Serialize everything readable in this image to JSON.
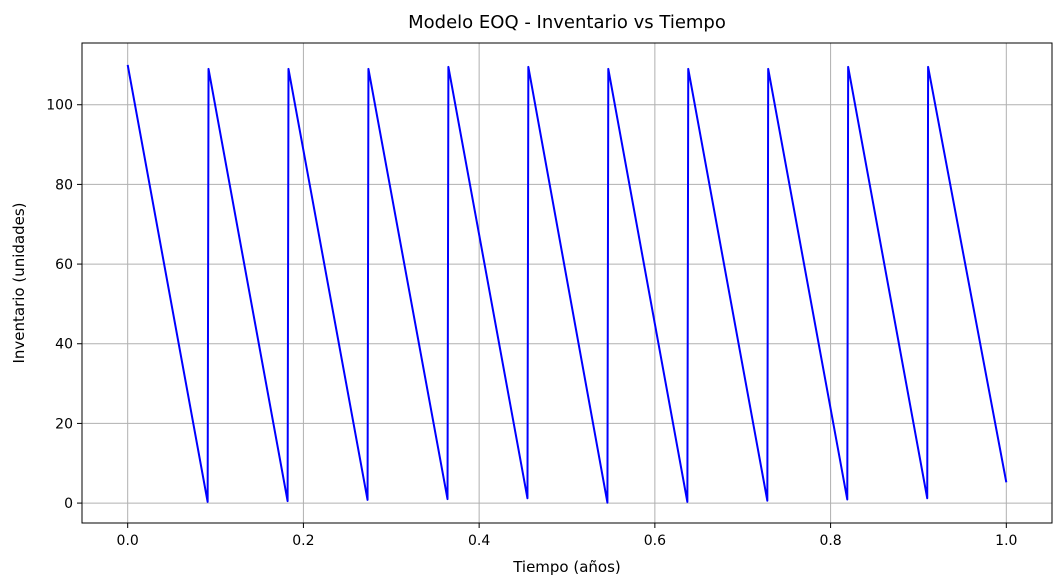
{
  "chart_data": {
    "type": "line",
    "title": "Modelo EOQ - Inventario vs Tiempo",
    "xlabel": "Tiempo (años)",
    "ylabel": "Inventario (unidades)",
    "xlim": [
      -0.052,
      1.052
    ],
    "ylim": [
      -5,
      115.5
    ],
    "xticks": [
      0.0,
      0.2,
      0.4,
      0.6,
      0.8,
      1.0
    ],
    "xtick_labels": [
      "0.0",
      "0.2",
      "0.4",
      "0.6",
      "0.8",
      "1.0"
    ],
    "yticks": [
      0,
      20,
      40,
      60,
      80,
      100
    ],
    "ytick_labels": [
      "0",
      "20",
      "40",
      "60",
      "80",
      "100"
    ],
    "grid": true,
    "series": [
      {
        "color": "#0000ff",
        "points": [
          [
            0.0,
            110
          ],
          [
            0.091,
            0.3
          ],
          [
            0.092,
            109
          ],
          [
            0.182,
            0.5
          ],
          [
            0.183,
            109
          ],
          [
            0.273,
            0.8
          ],
          [
            0.274,
            109
          ],
          [
            0.364,
            1.0
          ],
          [
            0.365,
            109.5
          ],
          [
            0.455,
            1.2
          ],
          [
            0.456,
            109.5
          ],
          [
            0.546,
            0.1
          ],
          [
            0.547,
            109
          ],
          [
            0.637,
            0.3
          ],
          [
            0.638,
            109
          ],
          [
            0.728,
            0.6
          ],
          [
            0.729,
            109
          ],
          [
            0.819,
            0.9
          ],
          [
            0.82,
            109.5
          ],
          [
            0.91,
            1.2
          ],
          [
            0.911,
            109.5
          ],
          [
            1.0,
            5.2
          ]
        ]
      }
    ]
  }
}
